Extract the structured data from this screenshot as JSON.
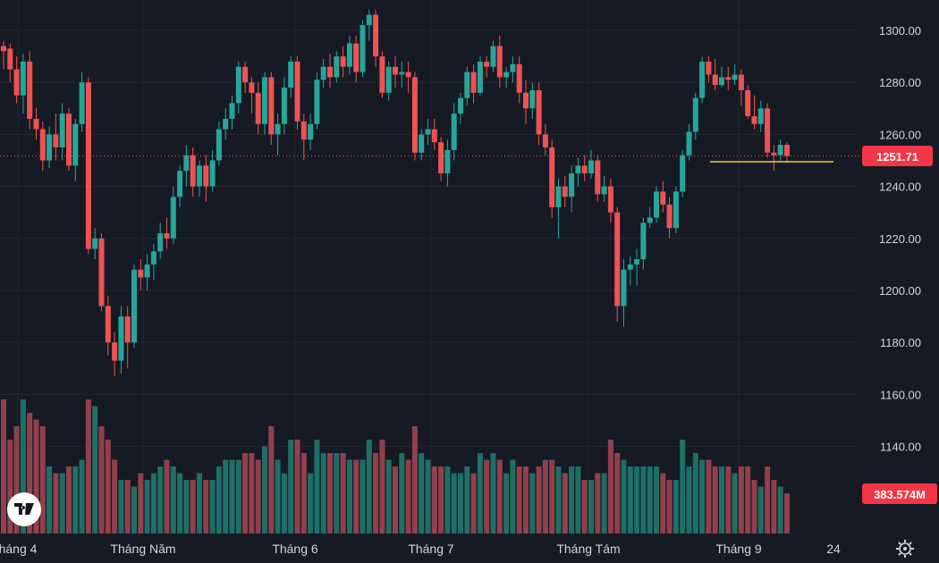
{
  "chart_data": {
    "type": "candlestick",
    "y_ticks": [
      "1300.00",
      "1280.00",
      "1260.00",
      "1240.00",
      "1220.00",
      "1200.00",
      "1180.00",
      "1160.00",
      "1140.00"
    ],
    "ylim": [
      1120,
      1308
    ],
    "x_labels": [
      "háng 4",
      "Tháng Năm",
      "Tháng 6",
      "Tháng 7",
      "Tháng Tám",
      "Tháng 9",
      "24"
    ],
    "last_price": 1251.71,
    "last_price_label": "1251.71",
    "volume_label": "383.574M",
    "support_level": 1249.5,
    "colors": {
      "up": "#26a69a",
      "down": "#ef5350",
      "up_vol": "#1e6f67",
      "down_vol": "#92404a",
      "bg": "#161a25",
      "grid": "#232734",
      "support": "#f2d32c",
      "price_tag": "#f23645"
    },
    "candles": [
      [
        1294,
        1292,
        1296,
        1285,
        1.0
      ],
      [
        1293,
        1285,
        1295,
        1280,
        0.7
      ],
      [
        1285,
        1275,
        1290,
        1272,
        0.8
      ],
      [
        1275,
        1288,
        1291,
        1268,
        1.0
      ],
      [
        1288,
        1266,
        1292,
        1262,
        0.9
      ],
      [
        1266,
        1262,
        1270,
        1258,
        0.85
      ],
      [
        1262,
        1250,
        1265,
        1246,
        0.8
      ],
      [
        1250,
        1260,
        1263,
        1247,
        0.5
      ],
      [
        1260,
        1255,
        1268,
        1250,
        0.45
      ],
      [
        1255,
        1268,
        1272,
        1250,
        0.45
      ],
      [
        1268,
        1248,
        1270,
        1246,
        0.5
      ],
      [
        1248,
        1264,
        1266,
        1242,
        0.5
      ],
      [
        1264,
        1280,
        1284,
        1261,
        0.55
      ],
      [
        1280,
        1216,
        1282,
        1214,
        1.0
      ],
      [
        1216,
        1220,
        1224,
        1212,
        0.95
      ],
      [
        1220,
        1194,
        1222,
        1192,
        0.8
      ],
      [
        1194,
        1180,
        1198,
        1175,
        0.7
      ],
      [
        1180,
        1173,
        1184,
        1167,
        0.55
      ],
      [
        1173,
        1190,
        1194,
        1168,
        0.4
      ],
      [
        1190,
        1180,
        1194,
        1170,
        0.4
      ],
      [
        1180,
        1208,
        1210,
        1178,
        0.35
      ],
      [
        1208,
        1205,
        1212,
        1200,
        0.45
      ],
      [
        1205,
        1210,
        1214,
        1200,
        0.4
      ],
      [
        1210,
        1215,
        1218,
        1204,
        0.45
      ],
      [
        1215,
        1222,
        1226,
        1212,
        0.5
      ],
      [
        1222,
        1220,
        1228,
        1216,
        0.55
      ],
      [
        1220,
        1236,
        1240,
        1218,
        0.5
      ],
      [
        1236,
        1246,
        1248,
        1232,
        0.45
      ],
      [
        1246,
        1252,
        1256,
        1240,
        0.4
      ],
      [
        1252,
        1240,
        1255,
        1236,
        0.4
      ],
      [
        1240,
        1248,
        1250,
        1236,
        0.45
      ],
      [
        1248,
        1240,
        1252,
        1234,
        0.4
      ],
      [
        1240,
        1250,
        1254,
        1238,
        0.4
      ],
      [
        1250,
        1262,
        1265,
        1248,
        0.5
      ],
      [
        1262,
        1266,
        1270,
        1258,
        0.55
      ],
      [
        1266,
        1272,
        1275,
        1262,
        0.55
      ],
      [
        1272,
        1286,
        1288,
        1268,
        0.55
      ],
      [
        1286,
        1280,
        1288,
        1276,
        0.6
      ],
      [
        1280,
        1276,
        1282,
        1268,
        0.6
      ],
      [
        1276,
        1264,
        1280,
        1260,
        0.55
      ],
      [
        1264,
        1282,
        1284,
        1260,
        0.65
      ],
      [
        1282,
        1260,
        1284,
        1256,
        0.8
      ],
      [
        1260,
        1264,
        1268,
        1252,
        0.55
      ],
      [
        1264,
        1278,
        1282,
        1260,
        0.45
      ],
      [
        1278,
        1288,
        1290,
        1274,
        0.7
      ],
      [
        1288,
        1265,
        1290,
        1262,
        0.7
      ],
      [
        1265,
        1258,
        1268,
        1250,
        0.6
      ],
      [
        1258,
        1264,
        1268,
        1254,
        0.45
      ],
      [
        1264,
        1281,
        1284,
        1262,
        0.7
      ],
      [
        1281,
        1286,
        1289,
        1278,
        0.6
      ],
      [
        1286,
        1282,
        1291,
        1278,
        0.6
      ],
      [
        1282,
        1290,
        1292,
        1280,
        0.6
      ],
      [
        1290,
        1286,
        1294,
        1282,
        0.6
      ],
      [
        1286,
        1295,
        1298,
        1283,
        0.55
      ],
      [
        1295,
        1284,
        1298,
        1280,
        0.55
      ],
      [
        1284,
        1302,
        1304,
        1282,
        0.55
      ],
      [
        1302,
        1306,
        1308,
        1296,
        0.7
      ],
      [
        1306,
        1290,
        1308,
        1286,
        0.6
      ],
      [
        1290,
        1276,
        1292,
        1274,
        0.7
      ],
      [
        1276,
        1286,
        1288,
        1273,
        0.55
      ],
      [
        1286,
        1283,
        1290,
        1278,
        0.5
      ],
      [
        1283,
        1284,
        1288,
        1278,
        0.6
      ],
      [
        1284,
        1282,
        1288,
        1276,
        0.55
      ],
      [
        1282,
        1253,
        1284,
        1250,
        0.8
      ],
      [
        1253,
        1260,
        1262,
        1250,
        0.6
      ],
      [
        1260,
        1262,
        1266,
        1256,
        0.55
      ],
      [
        1262,
        1257,
        1266,
        1254,
        0.5
      ],
      [
        1257,
        1245,
        1259,
        1242,
        0.5
      ],
      [
        1245,
        1254,
        1258,
        1240,
        0.5
      ],
      [
        1254,
        1268,
        1272,
        1250,
        0.45
      ],
      [
        1268,
        1274,
        1276,
        1264,
        0.45
      ],
      [
        1274,
        1284,
        1286,
        1271,
        0.5
      ],
      [
        1284,
        1276,
        1287,
        1272,
        0.45
      ],
      [
        1276,
        1288,
        1290,
        1275,
        0.6
      ],
      [
        1288,
        1286,
        1290,
        1282,
        0.55
      ],
      [
        1286,
        1294,
        1296,
        1284,
        0.6
      ],
      [
        1294,
        1282,
        1298,
        1278,
        0.55
      ],
      [
        1282,
        1284,
        1286,
        1278,
        0.45
      ],
      [
        1284,
        1287,
        1290,
        1280,
        0.55
      ],
      [
        1287,
        1276,
        1290,
        1272,
        0.5
      ],
      [
        1276,
        1270,
        1281,
        1264,
        0.5
      ],
      [
        1270,
        1277,
        1280,
        1266,
        0.45
      ],
      [
        1277,
        1260,
        1280,
        1256,
        0.5
      ],
      [
        1260,
        1255,
        1264,
        1252,
        0.55
      ],
      [
        1255,
        1232,
        1258,
        1228,
        0.55
      ],
      [
        1232,
        1240,
        1243,
        1220,
        0.5
      ],
      [
        1240,
        1236,
        1244,
        1232,
        0.45
      ],
      [
        1236,
        1245,
        1248,
        1230,
        0.5
      ],
      [
        1245,
        1248,
        1251,
        1240,
        0.5
      ],
      [
        1248,
        1245,
        1252,
        1242,
        0.4
      ],
      [
        1245,
        1250,
        1254,
        1243,
        0.4
      ],
      [
        1250,
        1237,
        1252,
        1234,
        0.45
      ],
      [
        1237,
        1240,
        1244,
        1234,
        0.45
      ],
      [
        1240,
        1230,
        1243,
        1226,
        0.7
      ],
      [
        1230,
        1194,
        1232,
        1188,
        0.6
      ],
      [
        1194,
        1208,
        1212,
        1186,
        0.55
      ],
      [
        1208,
        1210,
        1213,
        1202,
        0.5
      ],
      [
        1210,
        1212,
        1216,
        1202,
        0.5
      ],
      [
        1212,
        1226,
        1228,
        1208,
        0.5
      ],
      [
        1226,
        1228,
        1232,
        1224,
        0.5
      ],
      [
        1228,
        1238,
        1240,
        1226,
        0.5
      ],
      [
        1238,
        1233,
        1242,
        1230,
        0.45
      ],
      [
        1233,
        1224,
        1236,
        1220,
        0.4
      ],
      [
        1224,
        1238,
        1240,
        1222,
        0.4
      ],
      [
        1238,
        1252,
        1254,
        1236,
        0.7
      ],
      [
        1252,
        1261,
        1264,
        1250,
        0.5
      ],
      [
        1261,
        1274,
        1276,
        1258,
        0.6
      ],
      [
        1274,
        1288,
        1290,
        1272,
        0.55
      ],
      [
        1288,
        1283,
        1290,
        1280,
        0.55
      ],
      [
        1283,
        1279,
        1289,
        1277,
        0.5
      ],
      [
        1279,
        1282,
        1286,
        1278,
        0.5
      ],
      [
        1282,
        1281,
        1286,
        1277,
        0.5
      ],
      [
        1281,
        1283,
        1287,
        1279,
        0.45
      ],
      [
        1283,
        1277,
        1285,
        1271,
        0.5
      ],
      [
        1277,
        1267,
        1279,
        1266,
        0.5
      ],
      [
        1267,
        1264,
        1275,
        1262,
        0.4
      ],
      [
        1264,
        1270,
        1273,
        1261,
        0.35
      ],
      [
        1270,
        1253,
        1272,
        1251,
        0.5
      ],
      [
        1253,
        1252,
        1256,
        1246,
        0.4
      ],
      [
        1252,
        1256,
        1258,
        1250,
        0.35
      ],
      [
        1256,
        1251.71,
        1257,
        1249,
        0.3
      ]
    ]
  }
}
